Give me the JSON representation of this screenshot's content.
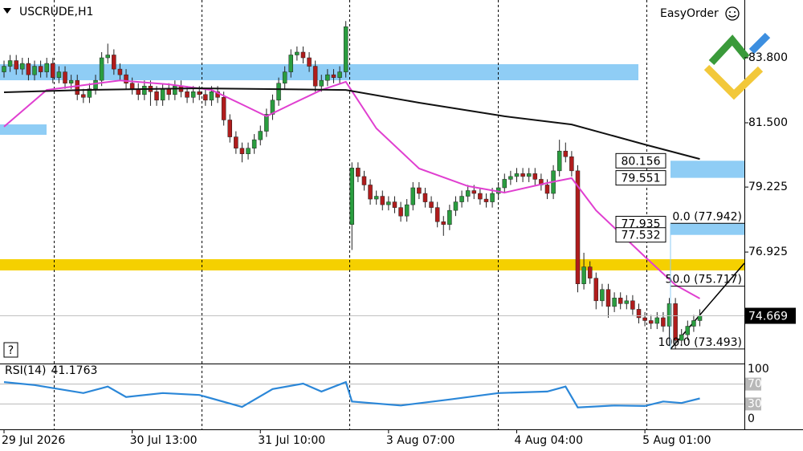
{
  "toolbar": {
    "easy_order": "EasyOrder",
    "help": "?"
  },
  "chart_data": [
    {
      "type": "candlestick",
      "title": "USCRUDE,H1",
      "open": [
        83.3,
        83.5,
        83.7,
        83.4,
        83.6,
        83.2,
        83.5,
        83.3,
        83.6,
        83.1,
        83.3,
        82.9,
        83.0,
        82.5,
        82.4,
        82.7,
        83.0,
        83.8,
        83.9,
        83.4,
        83.2,
        82.9,
        82.7,
        82.5,
        82.8,
        82.6,
        82.3,
        82.7,
        82.5,
        82.8,
        82.6,
        82.4,
        82.6,
        82.5,
        82.3,
        82.6,
        82.4,
        81.6,
        81.0,
        80.6,
        80.4,
        80.6,
        80.9,
        81.2,
        81.8,
        82.3,
        82.9,
        83.3,
        83.9,
        84.0,
        83.8,
        83.5,
        82.8,
        83.0,
        83.2,
        83.1,
        83.3,
        77.9,
        79.9,
        79.6,
        79.3,
        78.8,
        78.9,
        78.6,
        78.7,
        78.5,
        78.2,
        78.6,
        79.2,
        79.0,
        78.7,
        78.5,
        78.0,
        77.9,
        78.4,
        78.7,
        78.9,
        79.1,
        79.0,
        78.8,
        78.7,
        79.0,
        79.2,
        79.5,
        79.6,
        79.7,
        79.6,
        79.7,
        79.5,
        79.3,
        79.0,
        79.8,
        80.5,
        80.3,
        79.8,
        75.8,
        76.4,
        76.0,
        75.2,
        75.6,
        75.0,
        75.3,
        75.1,
        75.2,
        74.9,
        74.6,
        74.5,
        74.4,
        74.6,
        74.3,
        75.1,
        73.8,
        74.0,
        74.3,
        74.5
      ],
      "high": [
        83.7,
        83.9,
        83.9,
        83.8,
        83.8,
        83.7,
        83.7,
        83.8,
        83.8,
        83.5,
        83.5,
        83.2,
        83.2,
        82.7,
        82.9,
        83.2,
        84.0,
        84.3,
        84.1,
        83.6,
        83.4,
        83.1,
        82.9,
        83.0,
        83.0,
        82.8,
        82.9,
        82.9,
        83.0,
        83.0,
        82.8,
        82.8,
        82.8,
        82.7,
        82.8,
        82.8,
        82.6,
        81.8,
        81.2,
        80.8,
        80.8,
        81.1,
        81.4,
        82.0,
        82.5,
        83.1,
        83.5,
        84.1,
        84.2,
        84.2,
        84.0,
        83.7,
        83.2,
        83.4,
        83.4,
        83.5,
        85.1,
        80.1,
        80.1,
        79.8,
        79.5,
        79.1,
        79.1,
        78.9,
        78.9,
        78.7,
        78.8,
        79.4,
        79.4,
        79.2,
        78.9,
        78.7,
        78.2,
        78.6,
        78.9,
        79.1,
        79.3,
        79.3,
        79.2,
        79.0,
        79.2,
        79.4,
        79.7,
        79.8,
        79.9,
        79.9,
        79.9,
        79.9,
        79.7,
        79.5,
        80.0,
        80.9,
        80.8,
        80.5,
        80.0,
        76.9,
        76.6,
        76.2,
        75.8,
        75.8,
        75.5,
        75.5,
        75.4,
        75.4,
        75.1,
        74.8,
        74.7,
        74.8,
        74.8,
        75.3,
        75.3,
        74.2,
        74.5,
        74.7,
        74.9
      ],
      "low": [
        83.1,
        83.3,
        83.2,
        83.2,
        83.0,
        83.0,
        83.1,
        83.1,
        82.9,
        82.9,
        82.7,
        82.7,
        82.3,
        82.2,
        82.2,
        82.5,
        82.8,
        83.6,
        83.2,
        83.0,
        82.7,
        82.5,
        82.3,
        82.3,
        82.1,
        82.1,
        82.1,
        82.3,
        82.3,
        82.4,
        82.2,
        82.2,
        82.3,
        82.1,
        82.1,
        82.2,
        81.4,
        80.8,
        80.4,
        80.1,
        80.2,
        80.4,
        80.7,
        81.0,
        81.6,
        82.1,
        82.7,
        83.1,
        83.7,
        83.6,
        83.3,
        82.6,
        82.6,
        82.8,
        82.9,
        82.9,
        83.1,
        77.0,
        79.4,
        79.1,
        78.6,
        78.6,
        78.4,
        78.4,
        78.3,
        78.0,
        78.0,
        78.4,
        78.8,
        78.5,
        78.3,
        77.8,
        77.5,
        77.7,
        78.2,
        78.5,
        78.7,
        78.8,
        78.6,
        78.5,
        78.5,
        78.8,
        79.0,
        79.3,
        79.4,
        79.4,
        79.4,
        79.3,
        79.1,
        78.8,
        78.8,
        79.6,
        80.1,
        79.6,
        75.5,
        75.6,
        75.8,
        74.9,
        75.0,
        74.6,
        74.8,
        74.9,
        74.9,
        74.7,
        74.4,
        74.3,
        74.2,
        74.2,
        74.1,
        73.6,
        73.5,
        73.6,
        73.8,
        74.1,
        74.3
      ],
      "close": [
        83.5,
        83.7,
        83.4,
        83.6,
        83.2,
        83.5,
        83.3,
        83.6,
        83.1,
        83.3,
        82.9,
        83.0,
        82.5,
        82.4,
        82.7,
        83.0,
        83.8,
        83.9,
        83.4,
        83.2,
        82.9,
        82.7,
        82.5,
        82.8,
        82.6,
        82.3,
        82.7,
        82.5,
        82.8,
        82.6,
        82.4,
        82.6,
        82.5,
        82.3,
        82.6,
        82.4,
        81.6,
        81.0,
        80.6,
        80.4,
        80.6,
        80.9,
        81.2,
        81.8,
        82.3,
        82.9,
        83.3,
        83.9,
        84.0,
        83.8,
        83.5,
        82.8,
        83.0,
        83.2,
        83.1,
        83.3,
        84.9,
        79.9,
        79.6,
        79.3,
        78.8,
        78.9,
        78.6,
        78.7,
        78.5,
        78.2,
        78.6,
        79.2,
        79.0,
        78.7,
        78.5,
        78.0,
        77.9,
        78.4,
        78.7,
        78.9,
        79.1,
        79.0,
        78.8,
        78.7,
        79.0,
        79.2,
        79.5,
        79.6,
        79.7,
        79.6,
        79.7,
        79.5,
        79.3,
        79.0,
        79.8,
        80.5,
        80.3,
        79.8,
        75.8,
        76.4,
        76.0,
        75.2,
        75.6,
        75.0,
        75.3,
        75.1,
        75.2,
        74.9,
        74.6,
        74.5,
        74.4,
        74.6,
        74.3,
        75.1,
        73.8,
        74.0,
        74.3,
        74.5,
        74.669
      ],
      "up_color": "#2a9d3f",
      "down_color": "#b01c1c",
      "overlays": [
        {
          "color": "#e03fd0",
          "x": [
            0,
            7,
            19,
            27,
            34,
            39,
            43,
            47,
            52,
            56,
            61,
            68,
            76,
            82,
            89,
            93,
            97,
            105,
            110,
            114
          ],
          "values": [
            81.36,
            82.66,
            83.0,
            82.86,
            82.66,
            82.15,
            81.73,
            82.15,
            82.66,
            82.95,
            81.3,
            79.88,
            79.26,
            79.03,
            79.37,
            79.54,
            78.4,
            76.76,
            75.76,
            75.28
          ]
        },
        {
          "color": "#111111",
          "x": [
            0,
            13,
            32,
            56,
            68,
            82,
            93,
            105,
            114
          ],
          "values": [
            82.58,
            82.66,
            82.72,
            82.66,
            82.21,
            81.73,
            81.44,
            80.73,
            80.22
          ]
        }
      ],
      "price_labels": [
        80.156,
        79.551,
        77.935,
        77.532
      ],
      "fib_levels": [
        {
          "value": 77.942,
          "label": "0.0 (77.942)"
        },
        {
          "value": 75.717,
          "label": "50.0 (75.717)"
        },
        {
          "value": 73.493,
          "label": "100.0 (73.493)"
        }
      ],
      "last_price": 74.669,
      "xlim": [
        -0.66,
        121.3
      ],
      "xticks": [
        {
          "value": 0,
          "label": "29 Jul 2026"
        },
        {
          "value": 21,
          "label": "30 Jul 13:00"
        },
        {
          "value": 42,
          "label": "31 Jul 10:00"
        },
        {
          "value": 63,
          "label": "3 Aug 07:00"
        },
        {
          "value": 84,
          "label": "4 Aug 04:00"
        },
        {
          "value": 105,
          "label": "5 Aug 01:00"
        }
      ],
      "ylim": [
        72.98,
        85.845
      ],
      "yticks": [
        {
          "value": 83.8,
          "label": "83.800"
        },
        {
          "value": 81.5,
          "label": "81.500"
        },
        {
          "value": 79.225,
          "label": "79.225"
        },
        {
          "value": 76.925,
          "label": "76.925"
        }
      ]
    },
    {
      "type": "line",
      "title": "RSI(14)",
      "color": "#2b87d8",
      "x": [
        0,
        5,
        9,
        13,
        17,
        20,
        26,
        32,
        39,
        44,
        49,
        52,
        56,
        57,
        65,
        73,
        81,
        89,
        92,
        94,
        100,
        105,
        108,
        111,
        114
      ],
      "values": [
        74,
        68,
        60,
        52,
        65,
        44,
        52,
        48,
        24,
        60,
        71,
        55,
        74,
        35,
        27,
        39,
        52,
        55,
        65,
        23,
        27,
        26,
        35,
        32,
        41.1763
      ],
      "xlim": [
        -0.66,
        121.3
      ],
      "ylim": [
        0,
        100
      ],
      "yticks": [
        0,
        30,
        70,
        100
      ]
    }
  ]
}
